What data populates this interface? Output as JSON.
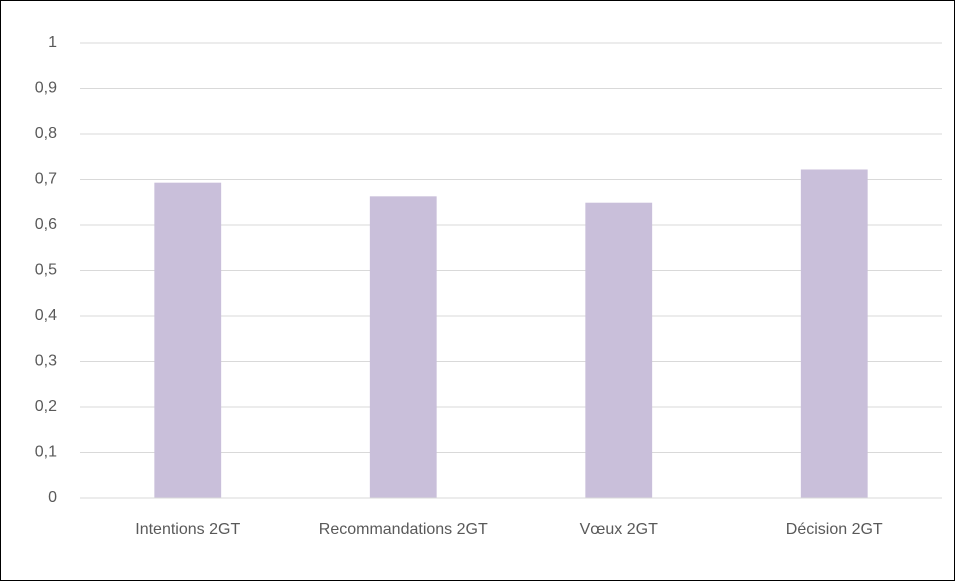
{
  "chart_data": {
    "type": "bar",
    "categories": [
      "Intentions 2GT",
      "Recommandations 2GT",
      "Vœux 2GT",
      "Décision 2GT"
    ],
    "values": [
      0.693,
      0.663,
      0.649,
      0.722
    ],
    "color": "#c9bfda",
    "ylim": [
      0,
      1
    ],
    "yticks": [
      0,
      {
        "value": 0.1,
        "label": "0,1"
      },
      {
        "value": 0.2,
        "label": "0,2"
      },
      {
        "value": 0.3,
        "label": "0,3"
      },
      {
        "value": 0.4,
        "label": "0,4"
      },
      {
        "value": 0.5,
        "label": "0,5"
      },
      {
        "value": 0.6,
        "label": "0,6"
      },
      {
        "value": 0.7,
        "label": "0,7"
      },
      {
        "value": 0.8,
        "label": "0,8"
      },
      {
        "value": 0.9,
        "label": "0,9"
      },
      1
    ],
    "grid": true
  }
}
